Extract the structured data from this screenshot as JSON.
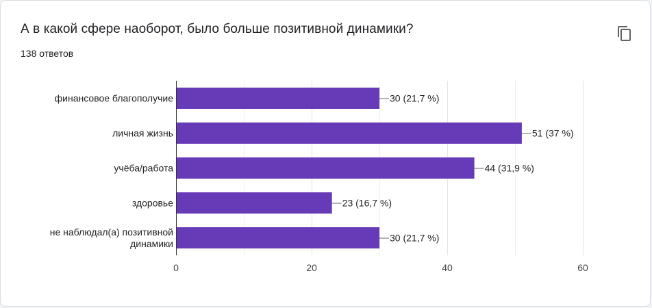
{
  "question": {
    "title": "А в какой сфере наоборот, было больше позитивной динамики?",
    "responses": "138 ответов"
  },
  "icons": {
    "copy": "copy-icon"
  },
  "colors": {
    "bar": "#673ab7",
    "grid": "#e6e6e6",
    "axis": "#333333",
    "text": "#222222"
  },
  "chart_data": {
    "type": "bar",
    "orientation": "horizontal",
    "categories": [
      [
        "финансовое благополучие"
      ],
      [
        "личная жизнь"
      ],
      [
        "учёба/работа"
      ],
      [
        "здоровье"
      ],
      [
        "не наблюдал(а) позитивной",
        "динамики"
      ]
    ],
    "values": [
      30,
      51,
      44,
      23,
      30
    ],
    "data_labels": [
      "30 (21,7 %)",
      "51 (37 %)",
      "44 (31,9 %)",
      "23 (16,7 %)",
      "30 (21,7 %)"
    ],
    "xlim": [
      0,
      60
    ],
    "xticks": [
      0,
      20,
      40,
      60
    ],
    "grid": true,
    "legend": "none"
  }
}
